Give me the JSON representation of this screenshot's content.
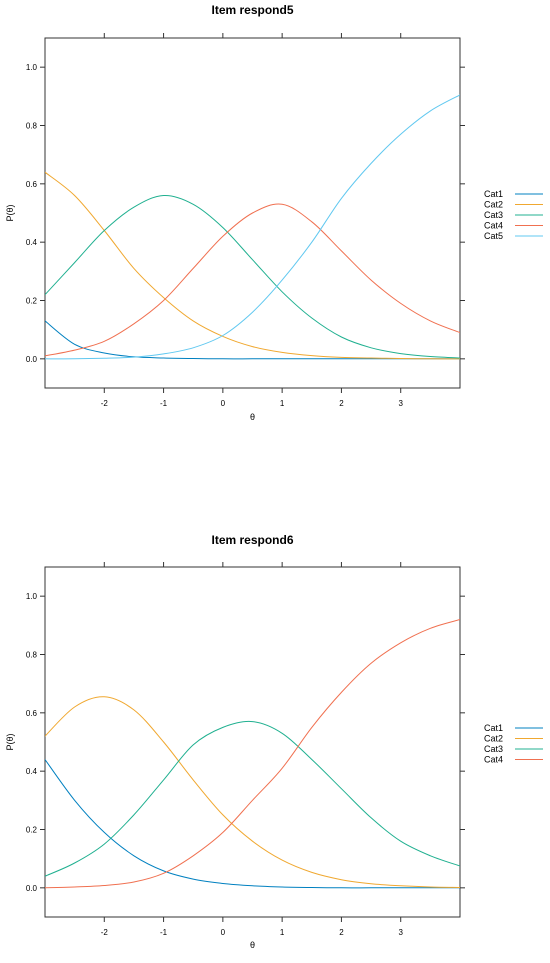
{
  "chart_data": [
    {
      "type": "line",
      "title": "Item respond5",
      "xlabel": "θ",
      "ylabel": "P(θ)",
      "xlim": [
        -3,
        4
      ],
      "ylim": [
        -0.1,
        1.1
      ],
      "xticks": [
        -2,
        -1,
        0,
        1,
        2,
        3
      ],
      "xtick_labels": [
        "-2",
        "-1",
        "0",
        "1",
        "2",
        "3"
      ],
      "yticks": [
        0.0,
        0.2,
        0.4,
        0.6,
        0.8,
        1.0
      ],
      "ytick_labels": [
        "0.0",
        "0.2",
        "0.4",
        "0.6",
        "0.8",
        "1.0"
      ],
      "grid": false,
      "legend_position": "right",
      "x": [
        -3,
        -2.5,
        -2,
        -1.5,
        -1,
        -0.5,
        0,
        0.5,
        1,
        1.5,
        2,
        2.5,
        3,
        3.5,
        4
      ],
      "series": [
        {
          "name": "Cat1",
          "color": "#0080c0",
          "values": [
            0.13,
            0.05,
            0.02,
            0.007,
            0.003,
            0.001,
            0.0,
            0.0,
            0.0,
            0.0,
            0.0,
            0.0,
            0.0,
            0.0,
            0.0
          ]
        },
        {
          "name": "Cat2",
          "color": "#f0a830",
          "values": [
            0.64,
            0.56,
            0.44,
            0.31,
            0.21,
            0.13,
            0.077,
            0.042,
            0.022,
            0.011,
            0.005,
            0.003,
            0.001,
            0.0,
            0.0
          ]
        },
        {
          "name": "Cat3",
          "color": "#20b090",
          "values": [
            0.22,
            0.33,
            0.44,
            0.52,
            0.56,
            0.53,
            0.45,
            0.34,
            0.23,
            0.14,
            0.075,
            0.038,
            0.018,
            0.008,
            0.003
          ]
        },
        {
          "name": "Cat4",
          "color": "#f07050",
          "values": [
            0.01,
            0.03,
            0.06,
            0.12,
            0.2,
            0.31,
            0.42,
            0.5,
            0.53,
            0.47,
            0.37,
            0.27,
            0.19,
            0.13,
            0.09
          ]
        },
        {
          "name": "Cat5",
          "color": "#60c8f0",
          "values": [
            0.0,
            0.0,
            0.002,
            0.006,
            0.017,
            0.038,
            0.08,
            0.16,
            0.27,
            0.4,
            0.55,
            0.67,
            0.77,
            0.85,
            0.905
          ]
        }
      ]
    },
    {
      "type": "line",
      "title": "Item respond6",
      "xlabel": "θ",
      "ylabel": "P(θ)",
      "xlim": [
        -3,
        4
      ],
      "ylim": [
        -0.1,
        1.1
      ],
      "xticks": [
        -2,
        -1,
        0,
        1,
        2,
        3
      ],
      "xtick_labels": [
        "-2",
        "-1",
        "0",
        "1",
        "2",
        "3"
      ],
      "yticks": [
        0.0,
        0.2,
        0.4,
        0.6,
        0.8,
        1.0
      ],
      "ytick_labels": [
        "0.0",
        "0.2",
        "0.4",
        "0.6",
        "0.8",
        "1.0"
      ],
      "grid": false,
      "legend_position": "right",
      "x": [
        -3,
        -2.5,
        -2,
        -1.5,
        -1,
        -0.5,
        0,
        0.5,
        1,
        1.5,
        2,
        2.5,
        3,
        3.5,
        4
      ],
      "series": [
        {
          "name": "Cat1",
          "color": "#0080c0",
          "values": [
            0.44,
            0.3,
            0.19,
            0.11,
            0.058,
            0.03,
            0.015,
            0.007,
            0.003,
            0.001,
            0.0,
            0.0,
            0.0,
            0.0,
            0.0
          ]
        },
        {
          "name": "Cat2",
          "color": "#f0a830",
          "values": [
            0.52,
            0.62,
            0.655,
            0.61,
            0.5,
            0.37,
            0.25,
            0.16,
            0.095,
            0.053,
            0.028,
            0.014,
            0.007,
            0.003,
            0.001
          ]
        },
        {
          "name": "Cat3",
          "color": "#20b090",
          "values": [
            0.04,
            0.085,
            0.15,
            0.25,
            0.37,
            0.49,
            0.55,
            0.57,
            0.53,
            0.44,
            0.34,
            0.24,
            0.16,
            0.11,
            0.075
          ]
        },
        {
          "name": "Cat4",
          "color": "#f07050",
          "values": [
            0.0,
            0.003,
            0.008,
            0.02,
            0.05,
            0.11,
            0.19,
            0.3,
            0.41,
            0.55,
            0.67,
            0.77,
            0.84,
            0.89,
            0.92
          ]
        }
      ]
    }
  ]
}
